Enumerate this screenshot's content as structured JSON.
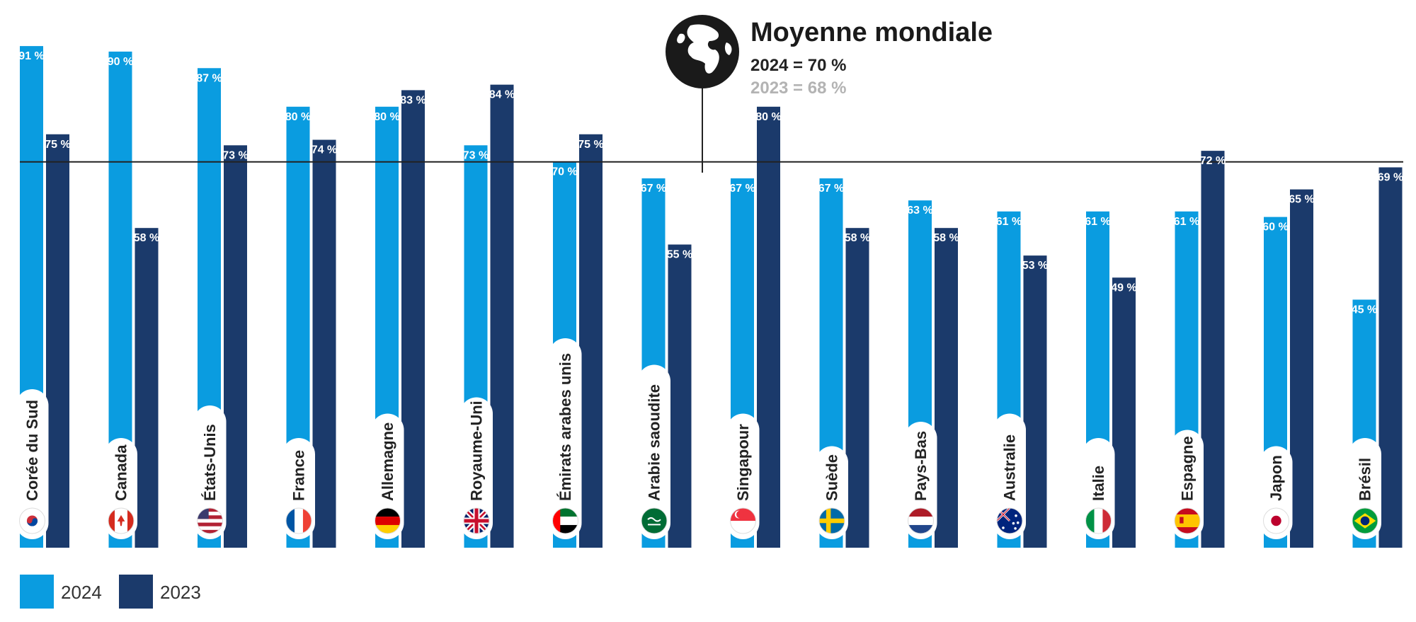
{
  "chart_data": {
    "type": "bar",
    "categories": [
      "Corée du Sud",
      "Canada",
      "États-Unis",
      "France",
      "Allemagne",
      "Royaume-Uni",
      "Émirats arabes unis",
      "Arabie saoudite",
      "Singapour",
      "Suède",
      "Pays-Bas",
      "Australie",
      "Italie",
      "Espagne",
      "Japon",
      "Brésil"
    ],
    "flag_icons": [
      "south-korea-flag-icon",
      "canada-flag-icon",
      "usa-flag-icon",
      "france-flag-icon",
      "germany-flag-icon",
      "uk-flag-icon",
      "uae-flag-icon",
      "saudi-arabia-flag-icon",
      "singapore-flag-icon",
      "sweden-flag-icon",
      "netherlands-flag-icon",
      "australia-flag-icon",
      "italy-flag-icon",
      "spain-flag-icon",
      "japan-flag-icon",
      "brazil-flag-icon"
    ],
    "series": [
      {
        "name": "2024",
        "color": "#0a9ce0",
        "values": [
          91,
          90,
          87,
          80,
          80,
          73,
          70,
          67,
          67,
          67,
          63,
          61,
          61,
          61,
          60,
          45
        ],
        "labels": [
          "91 %",
          "90 %",
          "87 %",
          "80 %",
          "80 %",
          "73 %",
          "70 %",
          "67 %",
          "67 %",
          "67 %",
          "63 %",
          "61 %",
          "61 %",
          "61 %",
          "60 %",
          "45 %"
        ]
      },
      {
        "name": "2023",
        "color": "#1b3a6b",
        "values": [
          75,
          58,
          73,
          74,
          83,
          84,
          75,
          55,
          80,
          58,
          58,
          53,
          49,
          72,
          65,
          69
        ],
        "labels": [
          "75 %",
          "58 %",
          "73 %",
          "74 %",
          "83 %",
          "84 %",
          "75 %",
          "55 %",
          "80 %",
          "58 %",
          "58 %",
          "53 %",
          "49 %",
          "72 %",
          "65 %",
          "69 %"
        ]
      }
    ],
    "ylim": [
      0,
      100
    ],
    "reference_line": 70,
    "grid": false,
    "legend_position": "bottom-left",
    "annotation": {
      "title": "Moyenne mondiale",
      "line_2024": "2024 = 70 %",
      "line_2023": "2023 = 68 %",
      "icon": "globe-icon"
    }
  },
  "legend": [
    {
      "label": "2024",
      "color": "#0a9ce0"
    },
    {
      "label": "2023",
      "color": "#1b3a6b"
    }
  ]
}
